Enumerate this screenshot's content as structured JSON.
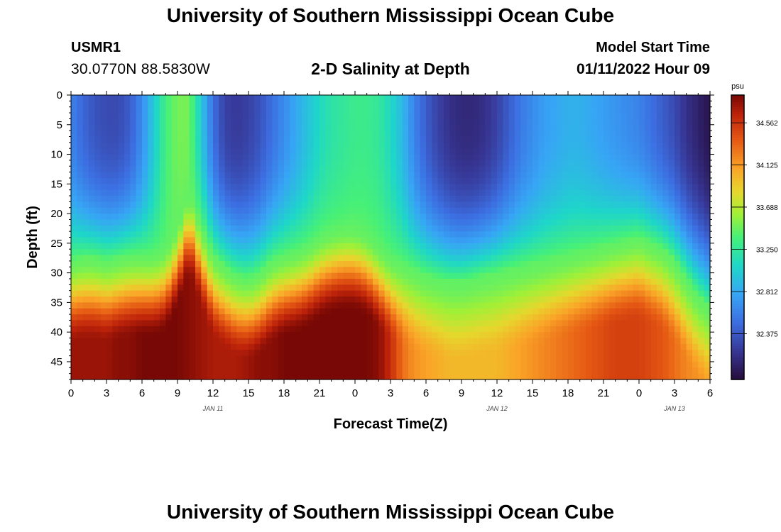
{
  "header": {
    "title": "University of Southern Mississippi Ocean Cube",
    "station_id": "USMR1",
    "coords": "30.0770N  88.5830W",
    "subtitle": "2-D Salinity at Depth",
    "start_label": "Model Start Time",
    "start_value": "01/11/2022 Hour 09"
  },
  "footer": {
    "title": "University of Southern Mississippi Ocean Cube"
  },
  "chart_data": {
    "type": "heatmap",
    "title": "2-D Salinity at Depth",
    "xlabel": "Forecast Time(Z)",
    "ylabel": "Depth (ft)",
    "x_range_hours": [
      0,
      54
    ],
    "y_range_ft": [
      0,
      48
    ],
    "x_ticks": [
      {
        "hour": 0,
        "label": "0"
      },
      {
        "hour": 3,
        "label": "3"
      },
      {
        "hour": 6,
        "label": "6"
      },
      {
        "hour": 9,
        "label": "9"
      },
      {
        "hour": 12,
        "label": "12"
      },
      {
        "hour": 15,
        "label": "15"
      },
      {
        "hour": 18,
        "label": "18"
      },
      {
        "hour": 21,
        "label": "21"
      },
      {
        "hour": 24,
        "label": "0"
      },
      {
        "hour": 27,
        "label": "3"
      },
      {
        "hour": 30,
        "label": "6"
      },
      {
        "hour": 33,
        "label": "9"
      },
      {
        "hour": 36,
        "label": "12"
      },
      {
        "hour": 39,
        "label": "15"
      },
      {
        "hour": 42,
        "label": "18"
      },
      {
        "hour": 45,
        "label": "21"
      },
      {
        "hour": 48,
        "label": "0"
      },
      {
        "hour": 51,
        "label": "3"
      },
      {
        "hour": 54,
        "label": "6"
      }
    ],
    "y_ticks": [
      {
        "depth": 0,
        "label": "0"
      },
      {
        "depth": 5,
        "label": "5"
      },
      {
        "depth": 10,
        "label": "10"
      },
      {
        "depth": 15,
        "label": "15"
      },
      {
        "depth": 20,
        "label": "20"
      },
      {
        "depth": 25,
        "label": "25"
      },
      {
        "depth": 30,
        "label": "30"
      },
      {
        "depth": 35,
        "label": "35"
      },
      {
        "depth": 40,
        "label": "40"
      },
      {
        "depth": 45,
        "label": "45"
      }
    ],
    "date_labels": [
      {
        "hour": 12,
        "label": "JAN 11"
      },
      {
        "hour": 36,
        "label": "JAN 12"
      },
      {
        "hour": 51,
        "label": "JAN 13"
      }
    ],
    "colorbar": {
      "unit": "psu",
      "min": 31.9,
      "max": 34.85,
      "tick_values": [
        34.562,
        34.125,
        33.688,
        33.25,
        32.812,
        32.375
      ],
      "tick_labels": [
        "34.562",
        "34.125",
        "33.688",
        "33.250",
        "32.812",
        "32.375"
      ]
    },
    "field": {
      "upper_layer_profile": {
        "hours": [
          0,
          1,
          2,
          3,
          4,
          5,
          6,
          7,
          8,
          9,
          10,
          11,
          12,
          13,
          14,
          15,
          16,
          17,
          18,
          19,
          20,
          21,
          22,
          23,
          24,
          25,
          26,
          27,
          28,
          29,
          30,
          31,
          32,
          33,
          34,
          35,
          36,
          37,
          38,
          39,
          40,
          41,
          42,
          43,
          44,
          45,
          46,
          47,
          48,
          49,
          50,
          51,
          52,
          53,
          54
        ],
        "surface_psu": [
          32.6,
          32.45,
          32.35,
          32.3,
          32.3,
          32.4,
          32.65,
          33.0,
          33.35,
          33.5,
          33.5,
          33.0,
          32.5,
          32.25,
          32.2,
          32.25,
          32.35,
          32.5,
          32.65,
          32.8,
          32.95,
          33.1,
          33.2,
          33.25,
          33.3,
          33.3,
          33.25,
          33.1,
          32.9,
          32.6,
          32.4,
          32.25,
          32.15,
          32.1,
          32.1,
          32.15,
          32.25,
          32.4,
          32.55,
          32.65,
          32.75,
          32.8,
          32.85,
          32.85,
          32.8,
          32.75,
          32.7,
          32.65,
          32.6,
          32.5,
          32.4,
          32.3,
          32.15,
          32.05,
          31.95
        ],
        "thermocline_depth_ft": [
          28,
          27.5,
          27.5,
          28,
          27.5,
          27,
          27,
          27,
          26,
          22,
          16,
          22,
          27,
          29,
          30.5,
          31,
          30,
          28,
          27,
          26.5,
          25.5,
          24,
          23,
          22.5,
          22.5,
          23.5,
          25.5,
          27.5,
          28.5,
          29.5,
          30.5,
          31,
          31.5,
          31.5,
          31,
          30.5,
          30,
          29.5,
          29,
          28.5,
          28,
          27.5,
          27,
          26.5,
          26,
          25.5,
          25,
          24.5,
          24,
          25,
          26,
          28,
          31,
          34,
          36
        ]
      },
      "bottom_psu": [
        34.75,
        34.75,
        34.75,
        34.75,
        34.8,
        34.8,
        34.85,
        34.85,
        34.85,
        34.85,
        34.8,
        34.75,
        34.7,
        34.7,
        34.7,
        34.75,
        34.8,
        34.8,
        34.85,
        34.85,
        34.85,
        34.85,
        34.85,
        34.85,
        34.85,
        34.85,
        34.8,
        34.6,
        34.3,
        34.15,
        34.1,
        34.05,
        34.0,
        34.0,
        34.0,
        34.0,
        34.0,
        34.05,
        34.1,
        34.15,
        34.2,
        34.25,
        34.3,
        34.35,
        34.4,
        34.45,
        34.5,
        34.5,
        34.5,
        34.45,
        34.4,
        34.3,
        34.2,
        34.15,
        34.1
      ]
    }
  }
}
